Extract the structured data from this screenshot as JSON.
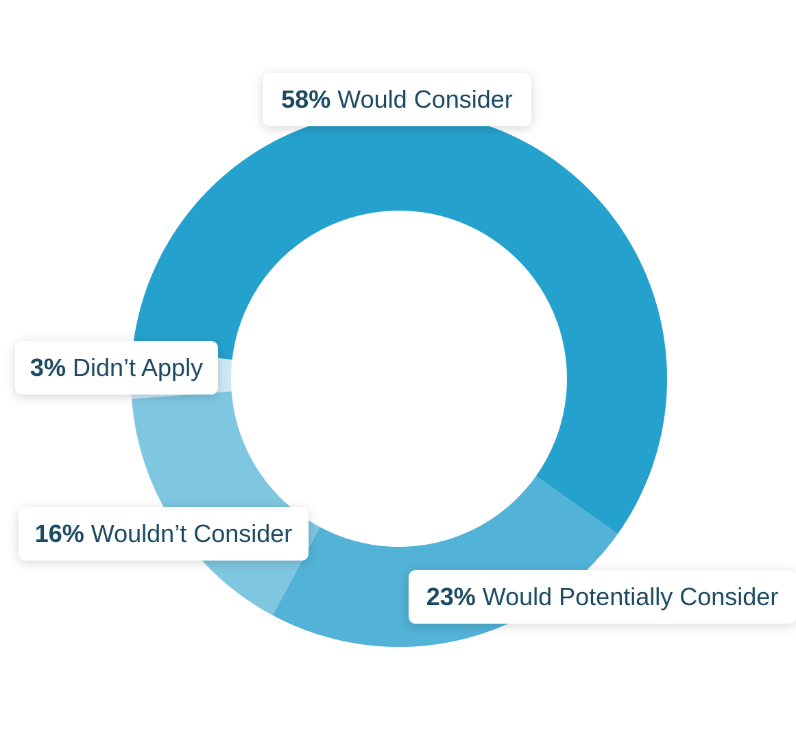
{
  "chart_data": {
    "type": "pie",
    "donut": true,
    "categories": [
      "Would Consider",
      "Would Potentially Consider",
      "Wouldn’t Consider",
      "Didn’t Apply"
    ],
    "values": [
      58,
      23,
      16,
      3
    ],
    "value_labels": [
      "58%",
      "23%",
      "16%",
      "3%"
    ],
    "colors": [
      "#25a1cd",
      "#52b2d7",
      "#7fc6e1",
      "#cde8f4"
    ],
    "title": "",
    "legend": "none"
  },
  "labels": {
    "would_consider": {
      "pct": "58%",
      "text": "Would Consider"
    },
    "potentially_consider": {
      "pct": "23%",
      "text": "Would Potentially Consider"
    },
    "wouldnt_consider": {
      "pct": "16%",
      "text": "Wouldn’t Consider"
    },
    "didnt_apply": {
      "pct": "3%",
      "text": "Didn’t Apply"
    }
  },
  "colors": {
    "label_text": "#1b4a62",
    "label_background": "#ffffff"
  }
}
